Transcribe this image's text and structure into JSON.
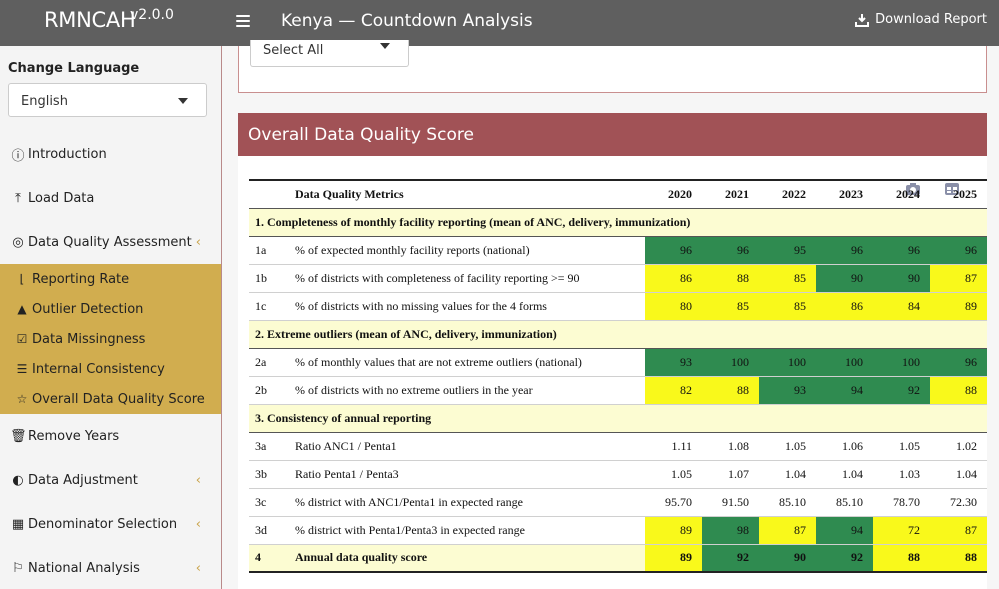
{
  "header": {
    "brand_name": "RMNCAH",
    "brand_version": "v2.0.0",
    "page_title": "Kenya — Countdown Analysis",
    "download_label": "Download Report"
  },
  "sidebar": {
    "language_label": "Change Language",
    "language_value": "English",
    "items": [
      {
        "label": "Introduction",
        "icon": "info-circle-icon"
      },
      {
        "label": "Load Data",
        "icon": "upload-icon"
      },
      {
        "label": "Data Quality Assessment",
        "icon": "check-circle-icon"
      },
      {
        "label": "Remove Years",
        "icon": "trash-icon"
      },
      {
        "label": "Data Adjustment",
        "icon": "half-circle-icon"
      },
      {
        "label": "Denominator Selection",
        "icon": "calculator-icon"
      },
      {
        "label": "National Analysis",
        "icon": "flag-icon"
      }
    ],
    "subitems": [
      {
        "label": "Reporting Rate",
        "icon": "chart-line-icon"
      },
      {
        "label": "Outlier Detection",
        "icon": "warning-icon"
      },
      {
        "label": "Data Missingness",
        "icon": "checkbox-icon"
      },
      {
        "label": "Internal Consistency",
        "icon": "list-check-icon"
      },
      {
        "label": "Overall Data Quality Score",
        "icon": "star-icon"
      }
    ]
  },
  "filter": {
    "select_all_label": "Select All"
  },
  "card": {
    "title": "Overall Data Quality Score"
  },
  "table": {
    "metric_header": "Data Quality Metrics",
    "years": [
      "2020",
      "2021",
      "2022",
      "2023",
      "2024",
      "2025"
    ],
    "sections": [
      {
        "title": "1. Completeness of monthly facility reporting (mean of ANC, delivery, immunization)",
        "rows": [
          {
            "code": "1a",
            "metric": "% of expected monthly facility reports (national)",
            "values": [
              "96",
              "96",
              "95",
              "96",
              "96",
              "96"
            ],
            "colors": [
              "g",
              "g",
              "g",
              "g",
              "g",
              "g"
            ]
          },
          {
            "code": "1b",
            "metric": "% of districts with completeness of facility reporting >= 90",
            "values": [
              "86",
              "88",
              "85",
              "90",
              "90",
              "87"
            ],
            "colors": [
              "y",
              "y",
              "y",
              "g",
              "g",
              "y"
            ]
          },
          {
            "code": "1c",
            "metric": "% of districts with no missing values for the 4 forms",
            "values": [
              "80",
              "85",
              "85",
              "86",
              "84",
              "89"
            ],
            "colors": [
              "y",
              "y",
              "y",
              "y",
              "y",
              "y"
            ]
          }
        ]
      },
      {
        "title": "2. Extreme outliers (mean of ANC, delivery, immunization)",
        "rows": [
          {
            "code": "2a",
            "metric": "% of monthly values that are not extreme outliers (national)",
            "values": [
              "93",
              "100",
              "100",
              "100",
              "100",
              "96"
            ],
            "colors": [
              "g",
              "g",
              "g",
              "g",
              "g",
              "g"
            ]
          },
          {
            "code": "2b",
            "metric": "% of districts with no extreme outliers in the year",
            "values": [
              "82",
              "88",
              "93",
              "94",
              "92",
              "88"
            ],
            "colors": [
              "y",
              "y",
              "g",
              "g",
              "g",
              "y"
            ]
          }
        ]
      },
      {
        "title": "3. Consistency of annual reporting",
        "rows": [
          {
            "code": "3a",
            "metric": "Ratio ANC1 / Penta1",
            "values": [
              "1.11",
              "1.08",
              "1.05",
              "1.06",
              "1.05",
              "1.02"
            ],
            "colors": [
              "",
              "",
              "",
              "",
              "",
              ""
            ]
          },
          {
            "code": "3b",
            "metric": "Ratio Penta1 / Penta3",
            "values": [
              "1.05",
              "1.07",
              "1.04",
              "1.04",
              "1.03",
              "1.04"
            ],
            "colors": [
              "",
              "",
              "",
              "",
              "",
              ""
            ]
          },
          {
            "code": "3c",
            "metric": "% district with ANC1/Penta1 in expected range",
            "values": [
              "95.70",
              "91.50",
              "85.10",
              "85.10",
              "78.70",
              "72.30"
            ],
            "colors": [
              "",
              "",
              "",
              "",
              "",
              ""
            ]
          },
          {
            "code": "3d",
            "metric": "% district with Penta1/Penta3 in expected range",
            "values": [
              "89",
              "98",
              "87",
              "94",
              "72",
              "87"
            ],
            "colors": [
              "y",
              "g",
              "y",
              "g",
              "y",
              "y"
            ]
          }
        ]
      }
    ],
    "final": {
      "code": "4",
      "metric": "Annual data quality score",
      "values": [
        "89",
        "92",
        "90",
        "92",
        "88",
        "88"
      ],
      "colors": [
        "y",
        "g",
        "g",
        "g",
        "y",
        "y"
      ]
    },
    "colors": {
      "g": "#2f8b50",
      "y": "#f9f91b"
    }
  }
}
